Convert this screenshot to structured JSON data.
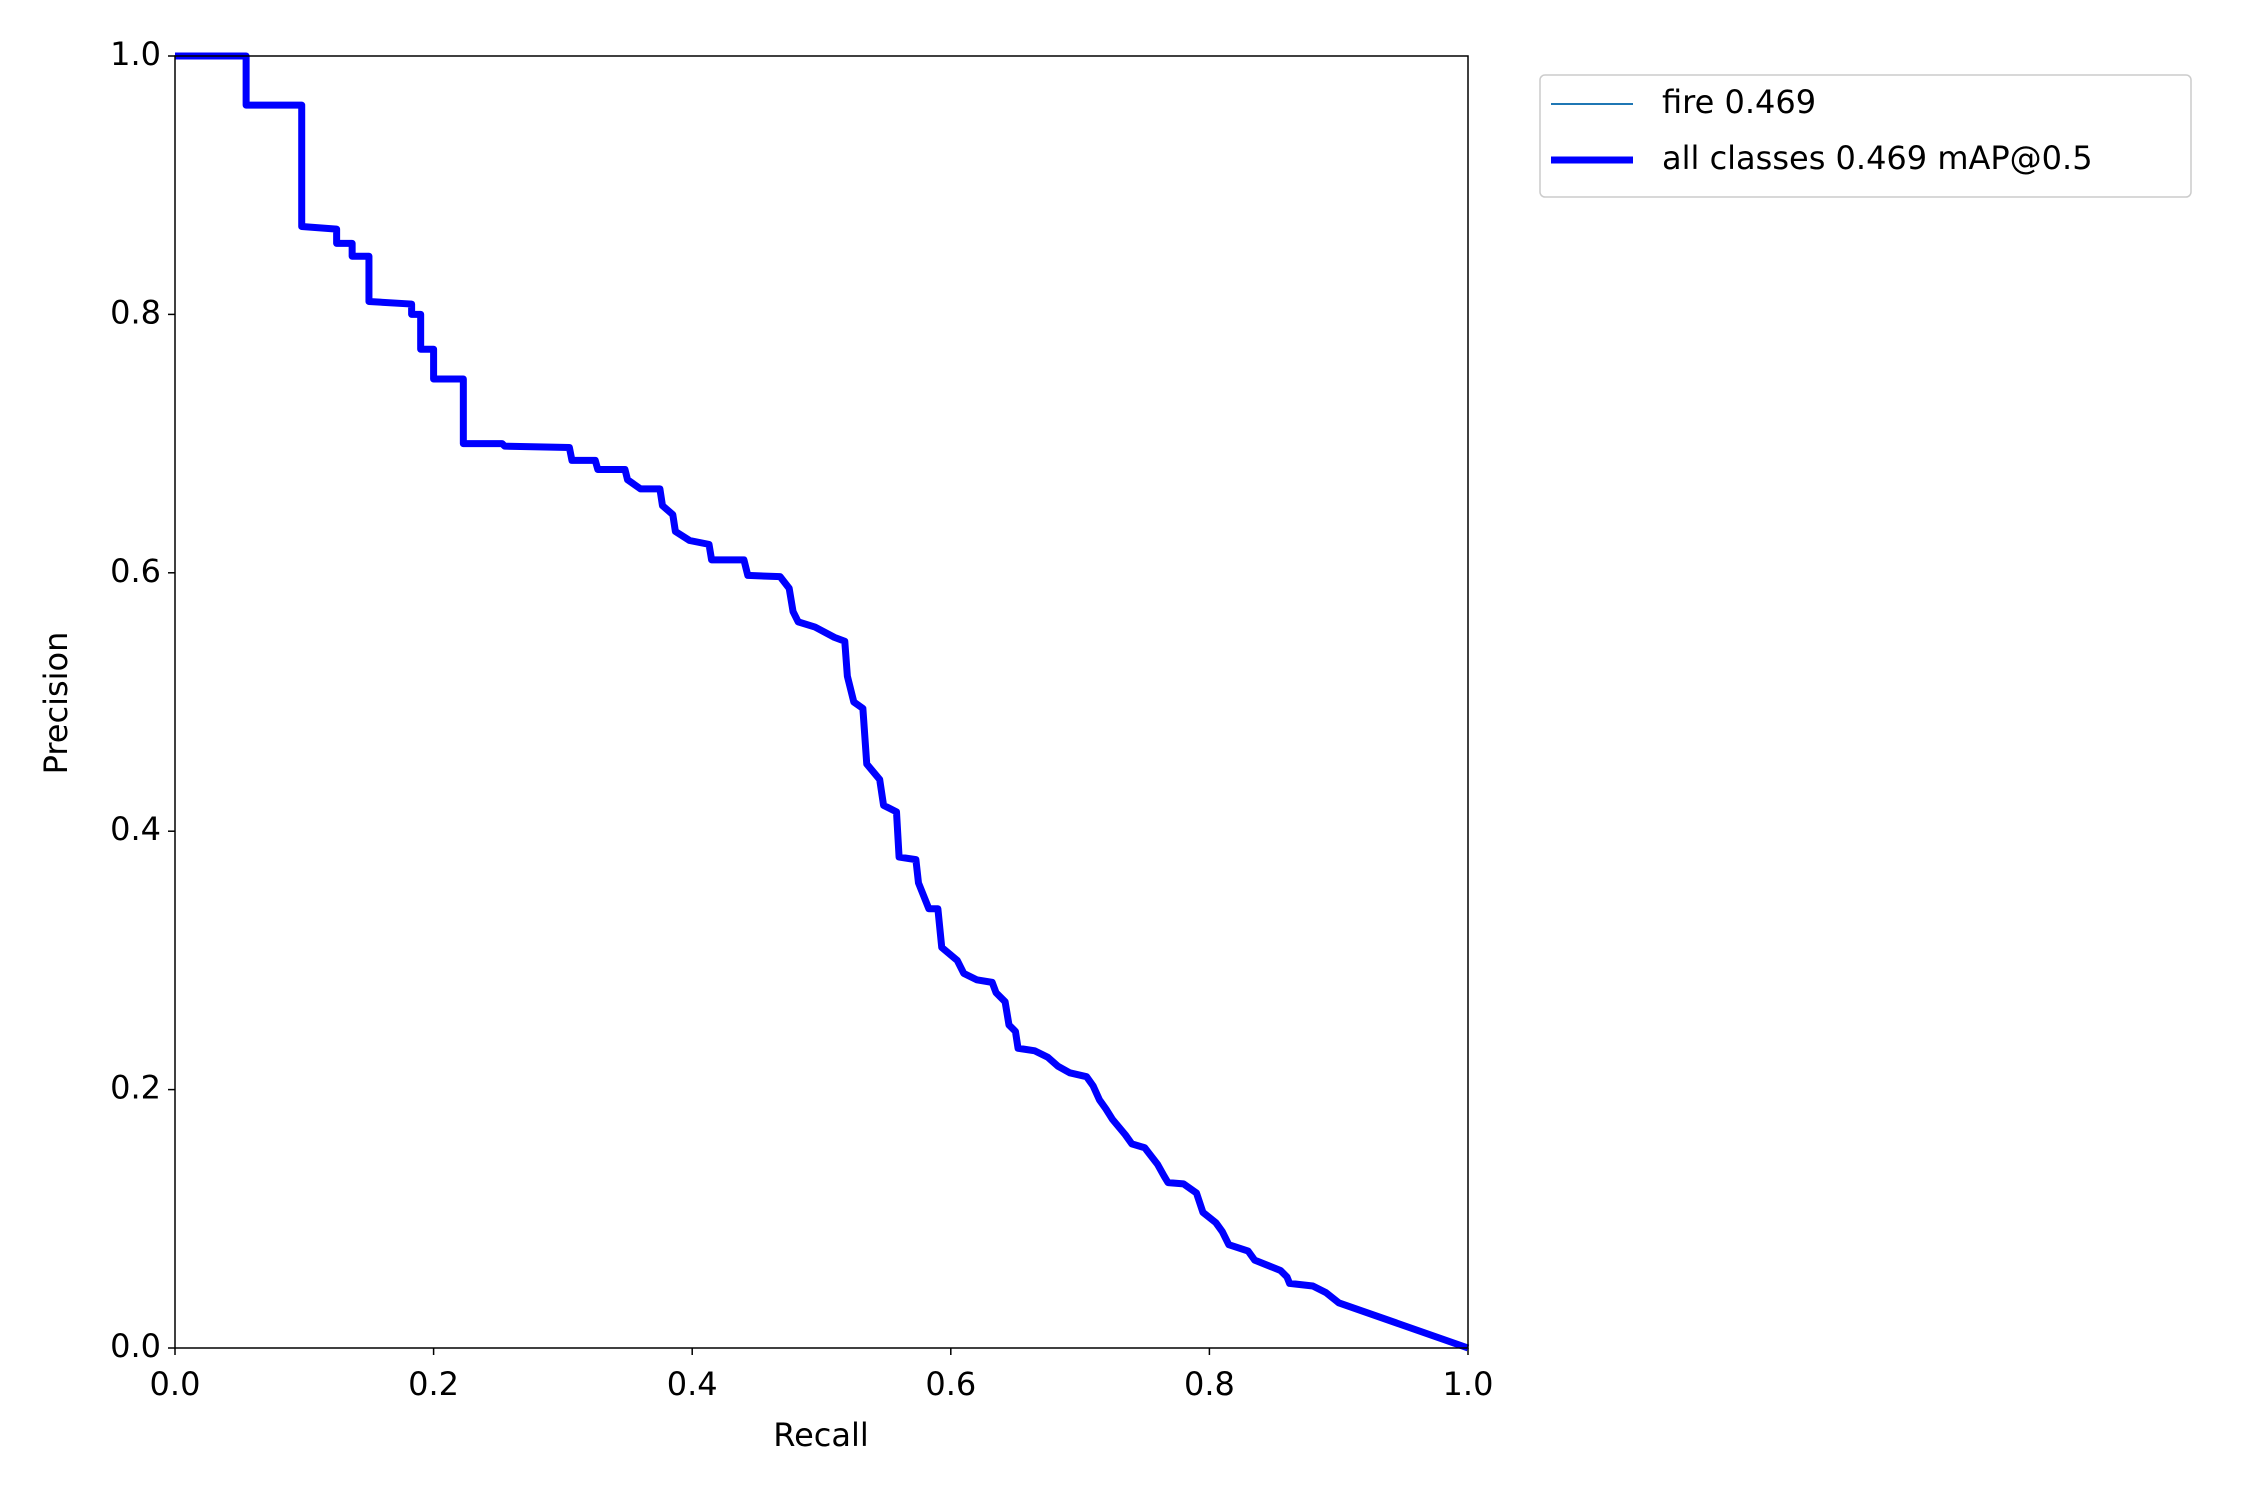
{
  "chart_data": {
    "type": "line",
    "xlabel": "Recall",
    "ylabel": "Precision",
    "xlim": [
      0,
      1
    ],
    "ylim": [
      0,
      1
    ],
    "xticks": [
      {
        "value": 0,
        "label": "0.0"
      },
      0.2,
      0.4,
      0.6,
      0.8,
      {
        "value": 1,
        "label": "1.0"
      }
    ],
    "yticks": [
      {
        "value": 0,
        "label": "0.0"
      },
      0.2,
      0.4,
      0.6,
      0.8,
      {
        "value": 1,
        "label": "1.0"
      }
    ],
    "legend": "outside-upper-right",
    "x": [
      0,
      0.055,
      0.055,
      0.098,
      0.098,
      0.125,
      0.125,
      0.137,
      0.137,
      0.15,
      0.15,
      0.183,
      0.183,
      0.19,
      0.19,
      0.2,
      0.2,
      0.223,
      0.223,
      0.253,
      0.255,
      0.305,
      0.307,
      0.325,
      0.327,
      0.348,
      0.35,
      0.36,
      0.375,
      0.377,
      0.385,
      0.387,
      0.398,
      0.413,
      0.415,
      0.44,
      0.443,
      0.468,
      0.475,
      0.478,
      0.482,
      0.495,
      0.51,
      0.518,
      0.52,
      0.525,
      0.532,
      0.535,
      0.545,
      0.548,
      0.558,
      0.56,
      0.573,
      0.575,
      0.583,
      0.59,
      0.593,
      0.605,
      0.61,
      0.62,
      0.632,
      0.635,
      0.642,
      0.645,
      0.65,
      0.652,
      0.665,
      0.675,
      0.683,
      0.692,
      0.705,
      0.71,
      0.715,
      0.72,
      0.725,
      0.735,
      0.74,
      0.75,
      0.76,
      0.765,
      0.768,
      0.78,
      0.79,
      0.795,
      0.805,
      0.81,
      0.815,
      0.83,
      0.835,
      0.855,
      0.86,
      0.862,
      0.88,
      0.89,
      0.9,
      1.0
    ],
    "series": [
      {
        "name": "fire 0.469",
        "color": "#1f77b4",
        "width": 2,
        "values": [
          1.0,
          1.0,
          0.962,
          0.962,
          0.868,
          0.866,
          0.855,
          0.855,
          0.845,
          0.845,
          0.81,
          0.808,
          0.8,
          0.8,
          0.773,
          0.773,
          0.75,
          0.75,
          0.7,
          0.7,
          0.698,
          0.697,
          0.687,
          0.687,
          0.68,
          0.68,
          0.672,
          0.665,
          0.665,
          0.652,
          0.645,
          0.632,
          0.625,
          0.622,
          0.61,
          0.61,
          0.598,
          0.597,
          0.588,
          0.57,
          0.562,
          0.558,
          0.55,
          0.547,
          0.52,
          0.5,
          0.495,
          0.452,
          0.44,
          0.42,
          0.415,
          0.38,
          0.378,
          0.36,
          0.34,
          0.34,
          0.31,
          0.3,
          0.29,
          0.285,
          0.283,
          0.275,
          0.268,
          0.25,
          0.245,
          0.232,
          0.23,
          0.225,
          0.218,
          0.213,
          0.21,
          0.203,
          0.192,
          0.185,
          0.177,
          0.165,
          0.158,
          0.155,
          0.142,
          0.133,
          0.128,
          0.127,
          0.12,
          0.105,
          0.097,
          0.09,
          0.08,
          0.075,
          0.068,
          0.06,
          0.055,
          0.05,
          0.048,
          0.043,
          0.035,
          0.0
        ]
      },
      {
        "name": "all classes 0.469 mAP@0.5",
        "color": "#0000ff",
        "width": 7,
        "values": [
          1.0,
          1.0,
          0.962,
          0.962,
          0.868,
          0.866,
          0.855,
          0.855,
          0.845,
          0.845,
          0.81,
          0.808,
          0.8,
          0.8,
          0.773,
          0.773,
          0.75,
          0.75,
          0.7,
          0.7,
          0.698,
          0.697,
          0.687,
          0.687,
          0.68,
          0.68,
          0.672,
          0.665,
          0.665,
          0.652,
          0.645,
          0.632,
          0.625,
          0.622,
          0.61,
          0.61,
          0.598,
          0.597,
          0.588,
          0.57,
          0.562,
          0.558,
          0.55,
          0.547,
          0.52,
          0.5,
          0.495,
          0.452,
          0.44,
          0.42,
          0.415,
          0.38,
          0.378,
          0.36,
          0.34,
          0.34,
          0.31,
          0.3,
          0.29,
          0.285,
          0.283,
          0.275,
          0.268,
          0.25,
          0.245,
          0.232,
          0.23,
          0.225,
          0.218,
          0.213,
          0.21,
          0.203,
          0.192,
          0.185,
          0.177,
          0.165,
          0.158,
          0.155,
          0.142,
          0.133,
          0.128,
          0.127,
          0.12,
          0.105,
          0.097,
          0.09,
          0.08,
          0.075,
          0.068,
          0.06,
          0.055,
          0.05,
          0.048,
          0.043,
          0.035,
          0.0
        ]
      }
    ]
  }
}
